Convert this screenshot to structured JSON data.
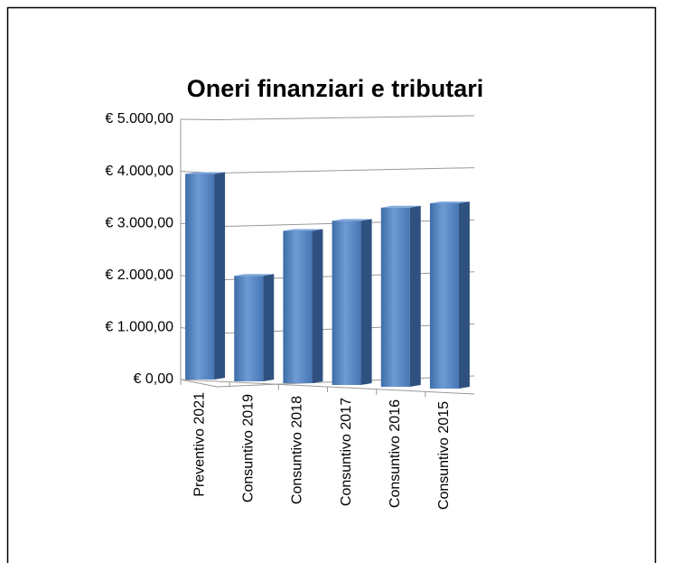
{
  "chart_data": {
    "type": "bar",
    "title": "Oneri finanziari e tributari",
    "categories": [
      "Preventivo 2021",
      "Consuntivo 2019",
      "Consuntivo 2018",
      "Consuntivo 2017",
      "Consuntivo 2016",
      "Consuntivo 2015"
    ],
    "values": [
      3950,
      2000,
      2870,
      3070,
      3330,
      3420
    ],
    "color": "#4f81bd",
    "ylim": [
      0,
      5000
    ],
    "yticks": [
      {
        "value": 0,
        "label": "€ 0,00"
      },
      {
        "value": 1000,
        "label": "€ 1.000,00"
      },
      {
        "value": 2000,
        "label": "€ 2.000,00"
      },
      {
        "value": 3000,
        "label": "€ 3.000,00"
      },
      {
        "value": 4000,
        "label": "€ 4.000,00"
      },
      {
        "value": 5000,
        "label": "€ 5.000,00"
      }
    ],
    "grid": true
  }
}
